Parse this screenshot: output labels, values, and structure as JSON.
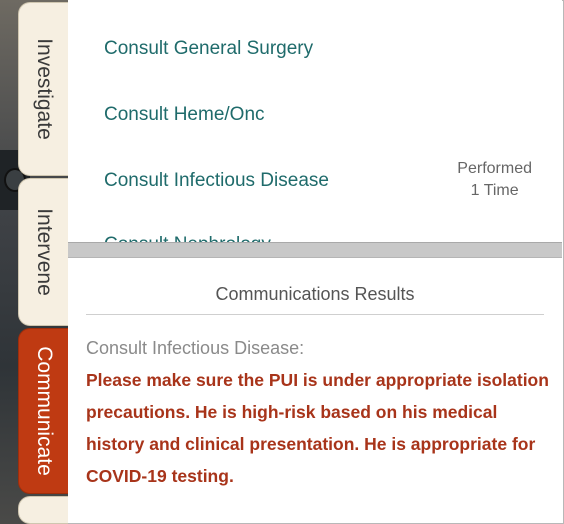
{
  "tabs": [
    {
      "label": "Investigate",
      "active": false
    },
    {
      "label": "Intervene",
      "active": false
    },
    {
      "label": "Communicate",
      "active": true
    }
  ],
  "consult_list": {
    "items": [
      {
        "label": "Consult General Surgery"
      },
      {
        "label": "Consult Heme/Onc"
      },
      {
        "label": "Consult Infectious Disease",
        "status_line1": "Performed",
        "status_line2": "1 Time"
      },
      {
        "label": "Consult Nephrology"
      }
    ]
  },
  "results": {
    "title": "Communications Results",
    "source": "Consult Infectious Disease:",
    "message": "Please make sure the PUI is under appropriate isolation precautions. He is high-risk based on his medical history and clinical presentation. He is appropriate for COVID-19 testing."
  },
  "colors": {
    "active_tab": "#bf3a12",
    "link_text": "#1f6b6b",
    "message_text": "#a8341a"
  }
}
